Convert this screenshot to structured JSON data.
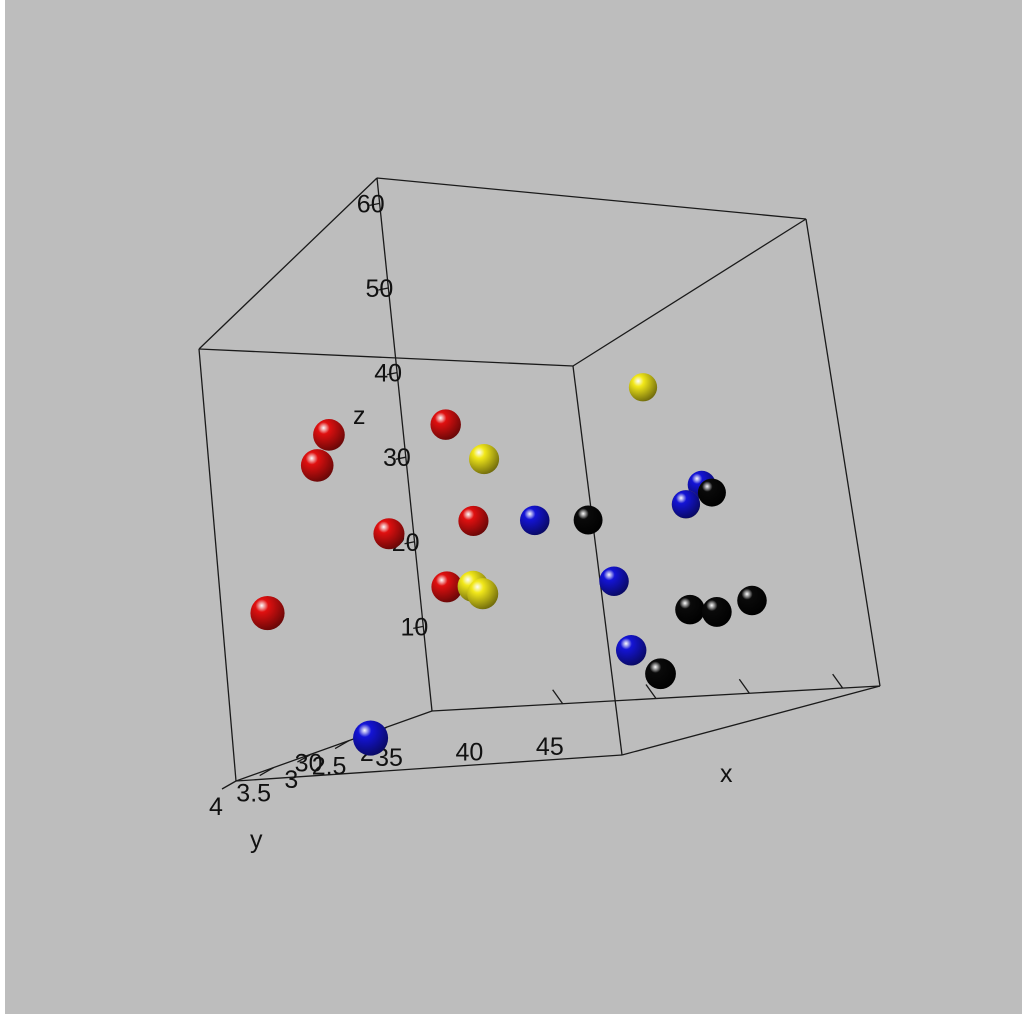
{
  "chart_data": {
    "type": "scatter",
    "title": "",
    "xlabel": "x",
    "ylabel": "y",
    "zlabel": "z",
    "xlim": [
      23,
      47
    ],
    "ylim": [
      1.4,
      4
    ],
    "zlim": [
      0,
      63
    ],
    "x_ticks": [
      "30",
      "35",
      "40",
      "45"
    ],
    "y_ticks": [
      "2",
      "2.5",
      "3",
      "3.5",
      "4"
    ],
    "z_ticks": [
      "10",
      "20",
      "30",
      "40",
      "50",
      "60"
    ],
    "grid": false,
    "legend": "none",
    "series": [
      {
        "color": "#e01010",
        "points": [
          {
            "x": 24.0,
            "y": 2.6,
            "z": 40
          },
          {
            "x": 24.5,
            "y": 2.9,
            "z": 38
          },
          {
            "x": 29.0,
            "y": 2.2,
            "z": 39
          },
          {
            "x": 26.0,
            "y": 2.4,
            "z": 26
          },
          {
            "x": 29.5,
            "y": 2.1,
            "z": 26
          },
          {
            "x": 23.0,
            "y": 3.4,
            "z": 21
          },
          {
            "x": 29.0,
            "y": 2.4,
            "z": 19
          }
        ]
      },
      {
        "color": "#f2e81a",
        "points": [
          {
            "x": 37.0,
            "y": 1.5,
            "z": 40
          },
          {
            "x": 30.5,
            "y": 2.1,
            "z": 34
          },
          {
            "x": 38.5,
            "y": 1.5,
            "z": 25
          },
          {
            "x": 30.5,
            "y": 2.4,
            "z": 19
          },
          {
            "x": 31.0,
            "y": 2.4,
            "z": 18
          }
        ]
      },
      {
        "color": "#1414d6",
        "points": [
          {
            "x": 32.0,
            "y": 1.9,
            "z": 25
          },
          {
            "x": 39.0,
            "y": 1.4,
            "z": 27
          },
          {
            "x": 38.5,
            "y": 1.5,
            "z": 25
          },
          {
            "x": 36.0,
            "y": 1.9,
            "z": 17
          },
          {
            "x": 38.0,
            "y": 2.2,
            "z": 9
          },
          {
            "x": 30.0,
            "y": 3.7,
            "z": 4
          }
        ]
      },
      {
        "color": "#0a0a0a",
        "points": [
          {
            "x": 34.0,
            "y": 1.7,
            "z": 24
          },
          {
            "x": 39.5,
            "y": 1.4,
            "z": 26
          },
          {
            "x": 40.0,
            "y": 1.9,
            "z": 13
          },
          {
            "x": 42.0,
            "y": 2.0,
            "z": 13
          },
          {
            "x": 43.5,
            "y": 1.9,
            "z": 14
          },
          {
            "x": 40.0,
            "y": 2.3,
            "z": 6
          }
        ]
      }
    ]
  }
}
